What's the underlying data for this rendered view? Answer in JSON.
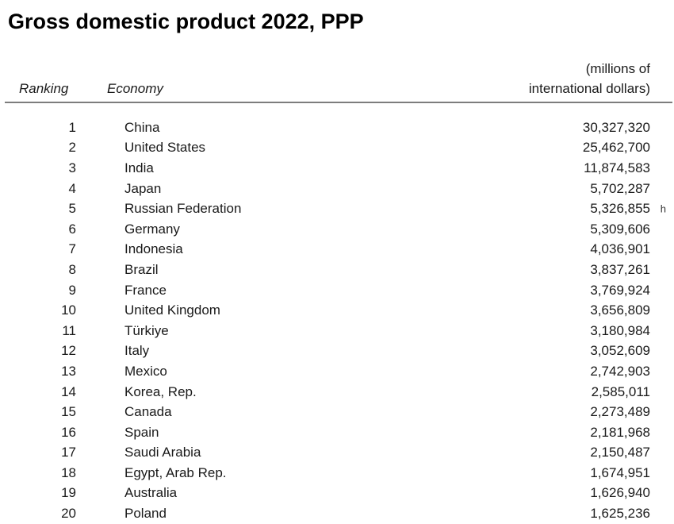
{
  "title": "Gross domestic product 2022, PPP",
  "table": {
    "headers": {
      "ranking": "Ranking",
      "economy": "Economy",
      "value_line1": "(millions of",
      "value_line2": "international dollars)"
    },
    "rows": [
      {
        "rank": "1",
        "economy": "China",
        "value": "30,327,320"
      },
      {
        "rank": "2",
        "economy": "United States",
        "value": "25,462,700"
      },
      {
        "rank": "3",
        "economy": "India",
        "value": "11,874,583"
      },
      {
        "rank": "4",
        "economy": "Japan",
        "value": "5,702,287"
      },
      {
        "rank": "5",
        "economy": "Russian Federation",
        "value": "5,326,855",
        "note": "h"
      },
      {
        "rank": "6",
        "economy": "Germany",
        "value": "5,309,606"
      },
      {
        "rank": "7",
        "economy": "Indonesia",
        "value": "4,036,901"
      },
      {
        "rank": "8",
        "economy": "Brazil",
        "value": "3,837,261"
      },
      {
        "rank": "9",
        "economy": "France",
        "value": "3,769,924"
      },
      {
        "rank": "10",
        "economy": "United Kingdom",
        "value": "3,656,809"
      },
      {
        "rank": "11",
        "economy": "Türkiye",
        "value": "3,180,984"
      },
      {
        "rank": "12",
        "economy": "Italy",
        "value": "3,052,609"
      },
      {
        "rank": "13",
        "economy": "Mexico",
        "value": "2,742,903"
      },
      {
        "rank": "14",
        "economy": "Korea, Rep.",
        "value": "2,585,011"
      },
      {
        "rank": "15",
        "economy": "Canada",
        "value": "2,273,489"
      },
      {
        "rank": "16",
        "economy": "Spain",
        "value": "2,181,968"
      },
      {
        "rank": "17",
        "economy": "Saudi Arabia",
        "value": "2,150,487"
      },
      {
        "rank": "18",
        "economy": "Egypt, Arab Rep.",
        "value": "1,674,951"
      },
      {
        "rank": "19",
        "economy": "Australia",
        "value": "1,626,940"
      },
      {
        "rank": "20",
        "economy": "Poland",
        "value": "1,625,236"
      }
    ]
  },
  "colors": {
    "background": "#ffffff",
    "text": "#1a1a1a",
    "rule": "#7d7d7d"
  }
}
